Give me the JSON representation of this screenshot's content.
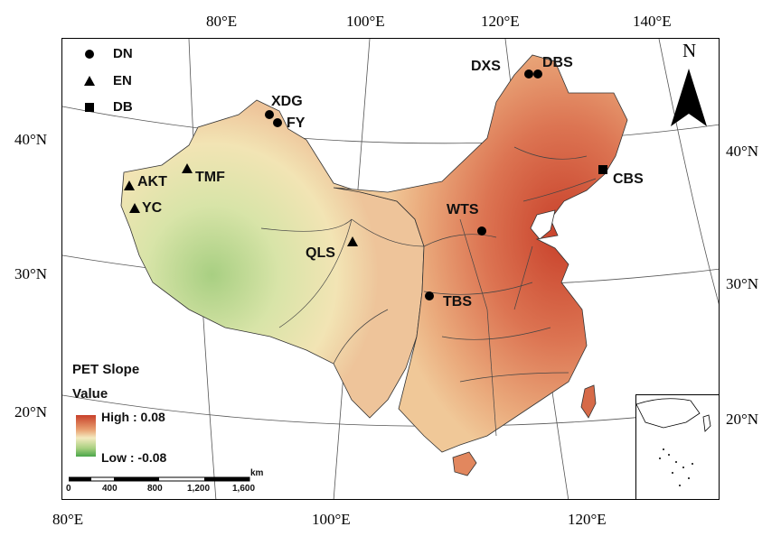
{
  "axes": {
    "top": [
      "80°E",
      "100°E",
      "120°E",
      "140°E"
    ],
    "bottom": [
      "80°E",
      "100°E",
      "120°E"
    ],
    "left": [
      "40°N",
      "30°N",
      "20°N"
    ],
    "right": [
      "40°N",
      "30°N",
      "20°N"
    ]
  },
  "legend": {
    "items": [
      {
        "label": "DN",
        "symbol": "circle"
      },
      {
        "label": "EN",
        "symbol": "triangle"
      },
      {
        "label": "DB",
        "symbol": "square"
      }
    ],
    "color_title": "PET Slope",
    "color_subtitle": "Value",
    "high_label": "High : 0.08",
    "low_label": "Low : -0.08",
    "high_color": "#c8402a",
    "mid_color": "#f4eac0",
    "low_color": "#4aa64a"
  },
  "stations": [
    {
      "name": "XDG",
      "type": "circle"
    },
    {
      "name": "FY",
      "type": "circle"
    },
    {
      "name": "DXS",
      "type": "circle"
    },
    {
      "name": "DBS",
      "type": "circle"
    },
    {
      "name": "AKT",
      "type": "triangle"
    },
    {
      "name": "TMF",
      "type": "triangle"
    },
    {
      "name": "YC",
      "type": "triangle"
    },
    {
      "name": "CBS",
      "type": "square"
    },
    {
      "name": "WTS",
      "type": "circle"
    },
    {
      "name": "QLS",
      "type": "triangle"
    },
    {
      "name": "TBS",
      "type": "circle"
    }
  ],
  "north_label": "N",
  "scale": {
    "unit": "km",
    "ticks": [
      "0",
      "400",
      "800",
      "1,200",
      "1,600"
    ]
  }
}
